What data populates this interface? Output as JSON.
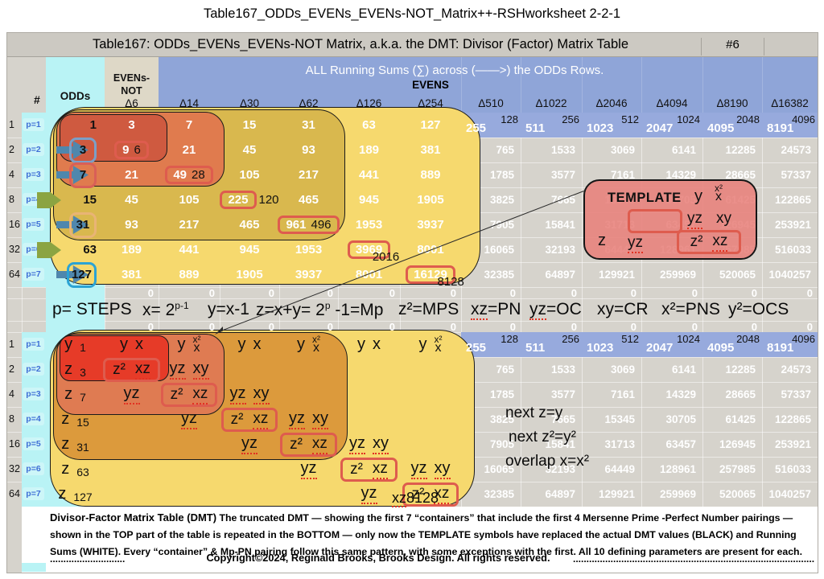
{
  "page_title": "Table167_ODDs_EVENs_EVENs-NOT_Matrix++-RSHworksheet 2-2-1",
  "table": {
    "header": "Table167: ODDs_EVENs_EVENs-NOT Matrix, a.k.a. the DMT: Divisor (Factor) Matrix Table",
    "sheet_number": "#6",
    "hash_label": "#",
    "odds_label": "ODDs",
    "evens_not_line1": "EVENs-",
    "evens_not_line2": "NOT",
    "band_title": "ALL Running Sums (∑) across (——>) the ODDs Rows.",
    "evens_label": "EVENS",
    "delta_labels": [
      "Δ6",
      "Δ14",
      "Δ30",
      "Δ62",
      "Δ126",
      "Δ254",
      "Δ510",
      "Δ1022",
      "Δ2046",
      "Δ4094",
      "Δ8190",
      "Δ16382"
    ],
    "zero_value": "0"
  },
  "rows": [
    {
      "num": "1",
      "p": "p=1"
    },
    {
      "num": "2",
      "p": "p=2"
    },
    {
      "num": "4",
      "p": "p=3"
    },
    {
      "num": "8",
      "p": "p=4"
    },
    {
      "num": "16",
      "p": "p=5"
    },
    {
      "num": "32",
      "p": "p=6"
    },
    {
      "num": "64",
      "p": "p=7"
    }
  ],
  "top_matrix": [
    [
      {
        "v": "1",
        "c": "b"
      },
      {
        "v": "3",
        "c": "w"
      },
      {
        "v": "7",
        "c": "w"
      },
      {
        "v": "15",
        "c": "w"
      },
      {
        "v": "31",
        "c": "w"
      },
      {
        "v": "63",
        "c": "w"
      },
      {
        "v": "127",
        "c": "w"
      },
      {
        "v": "255",
        "c": "w",
        "ev": "128"
      },
      {
        "v": "511",
        "c": "w",
        "ev": "256"
      },
      {
        "v": "1023",
        "c": "w",
        "ev": "512"
      },
      {
        "v": "2047",
        "c": "w",
        "ev": "1024"
      },
      {
        "v": "4095",
        "c": "w",
        "ev": "2048"
      },
      {
        "v": "8191",
        "c": "w",
        "ev": "4096"
      }
    ],
    [
      {
        "v": "3",
        "c": "b",
        "chip": "blue",
        "arrow": "blue"
      },
      {
        "v": "9",
        "c": "w",
        "box": true,
        "pn": "6",
        "pnpos": "in"
      },
      {
        "v": "21",
        "c": "w"
      },
      {
        "v": "45",
        "c": "w"
      },
      {
        "v": "93",
        "c": "w"
      },
      {
        "v": "189",
        "c": "w"
      },
      {
        "v": "381",
        "c": "w"
      },
      {
        "v": "765",
        "c": "w"
      },
      {
        "v": "1533",
        "c": "w"
      },
      {
        "v": "3069",
        "c": "w"
      },
      {
        "v": "6141",
        "c": "w"
      },
      {
        "v": "12285",
        "c": "w"
      },
      {
        "v": "24573",
        "c": "w"
      }
    ],
    [
      {
        "v": "7",
        "c": "b",
        "chip": "red",
        "arrow": "blue"
      },
      {
        "v": "21",
        "c": "w"
      },
      {
        "v": "49",
        "c": "w",
        "box": true,
        "pn": "28",
        "pnpos": "in"
      },
      {
        "v": "105",
        "c": "w"
      },
      {
        "v": "217",
        "c": "w"
      },
      {
        "v": "441",
        "c": "w"
      },
      {
        "v": "889",
        "c": "w"
      },
      {
        "v": "1785",
        "c": "w"
      },
      {
        "v": "3577",
        "c": "w"
      },
      {
        "v": "7161",
        "c": "w"
      },
      {
        "v": "14329",
        "c": "w"
      },
      {
        "v": "28665",
        "c": "w"
      },
      {
        "v": "57337",
        "c": "w"
      }
    ],
    [
      {
        "v": "15",
        "c": "b",
        "arrow": "green"
      },
      {
        "v": "45",
        "c": "w"
      },
      {
        "v": "105",
        "c": "w"
      },
      {
        "v": "225",
        "c": "w",
        "box": true,
        "pn": "120",
        "pnpos": "r"
      },
      {
        "v": "465",
        "c": "w"
      },
      {
        "v": "945",
        "c": "w"
      },
      {
        "v": "1905",
        "c": "w"
      },
      {
        "v": "3825",
        "c": "w"
      },
      {
        "v": "7665",
        "c": "w"
      },
      {
        "v": "15345",
        "c": "w"
      },
      {
        "v": "30705",
        "c": "w"
      },
      {
        "v": "61425",
        "c": "w"
      },
      {
        "v": "122865",
        "c": "w"
      }
    ],
    [
      {
        "v": "31",
        "c": "b",
        "chip": "tan",
        "arrow": "blue"
      },
      {
        "v": "93",
        "c": "w"
      },
      {
        "v": "217",
        "c": "w"
      },
      {
        "v": "465",
        "c": "w"
      },
      {
        "v": "961",
        "c": "w",
        "box": true,
        "pn": "496",
        "pnpos": "in"
      },
      {
        "v": "1953",
        "c": "w"
      },
      {
        "v": "3937",
        "c": "w"
      },
      {
        "v": "7905",
        "c": "w"
      },
      {
        "v": "15841",
        "c": "w"
      },
      {
        "v": "31713",
        "c": "w"
      },
      {
        "v": "63457",
        "c": "w"
      },
      {
        "v": "126945",
        "c": "w"
      },
      {
        "v": "253921",
        "c": "w"
      }
    ],
    [
      {
        "v": "63",
        "c": "b",
        "arrow": "green"
      },
      {
        "v": "189",
        "c": "w"
      },
      {
        "v": "441",
        "c": "w"
      },
      {
        "v": "945",
        "c": "w"
      },
      {
        "v": "1953",
        "c": "w"
      },
      {
        "v": "3969",
        "c": "w",
        "box": true,
        "pn": "2016",
        "pnpos": "br"
      },
      {
        "v": "8001",
        "c": "w"
      },
      {
        "v": "16065",
        "c": "w"
      },
      {
        "v": "32193",
        "c": "w"
      },
      {
        "v": "64449",
        "c": "w"
      },
      {
        "v": "128961",
        "c": "w"
      },
      {
        "v": "257985",
        "c": "w"
      },
      {
        "v": "516033",
        "c": "w"
      }
    ],
    [
      {
        "v": "127",
        "c": "b",
        "chip": "cyan",
        "arrow": "blue"
      },
      {
        "v": "381",
        "c": "w"
      },
      {
        "v": "889",
        "c": "w"
      },
      {
        "v": "1905",
        "c": "w"
      },
      {
        "v": "3937",
        "c": "w"
      },
      {
        "v": "8001",
        "c": "w"
      },
      {
        "v": "16129",
        "c": "w",
        "box": true,
        "pn": "8128",
        "pnpos": "br"
      },
      {
        "v": "32385",
        "c": "w"
      },
      {
        "v": "64897",
        "c": "w"
      },
      {
        "v": "129921",
        "c": "w"
      },
      {
        "v": "259969",
        "c": "w"
      },
      {
        "v": "520065",
        "c": "w"
      },
      {
        "v": "1040257",
        "c": "w"
      }
    ]
  ],
  "formula_tokens": [
    "p= STEPS",
    "x= 2^p-1^",
    "y=x-1",
    "z=x+y= 2^p^ -1=Mp",
    "z²=MPS",
    "xz=PN",
    "yz=OC",
    "xy=CR",
    "x²=PNS",
    "y²=OCS"
  ],
  "formula_squiggle_indices": [
    5,
    6
  ],
  "bottom_matrix": [
    [
      [
        {
          "t": "y"
        },
        {
          "t": "1",
          "small": true
        }
      ],
      [
        {
          "t": "y"
        },
        {
          "t": "x"
        }
      ],
      [
        {
          "t": "y"
        },
        {
          "stack": [
            "x²",
            "x"
          ]
        }
      ],
      [
        {
          "t": "y"
        },
        {
          "t": "x"
        }
      ],
      [
        {
          "t": "y"
        },
        {
          "stack": [
            "x²",
            "x"
          ]
        }
      ],
      [
        {
          "t": "y"
        },
        {
          "t": "x"
        }
      ],
      [
        {
          "t": "y"
        },
        {
          "stack": [
            "x²",
            "x"
          ]
        }
      ]
    ],
    [
      [
        {
          "t": "z"
        },
        {
          "t": "3",
          "small": true
        }
      ],
      [
        {
          "boxed": [
            "z²",
            "xz"
          ]
        }
      ],
      [
        {
          "t": "yz",
          "sq": true
        },
        {
          "t": "xy",
          "sq": true
        }
      ],
      null,
      null,
      null,
      null
    ],
    [
      [
        {
          "t": "z"
        },
        {
          "t": "7",
          "small": true
        }
      ],
      [
        {
          "t": "yz",
          "sq": true
        }
      ],
      [
        {
          "boxed": [
            "z²",
            "xz"
          ]
        }
      ],
      [
        {
          "t": "yz",
          "sq": true
        },
        {
          "t": "xy",
          "sq": true
        }
      ],
      null,
      null,
      null
    ],
    [
      [
        {
          "t": "z"
        },
        {
          "t": "15",
          "small": true
        }
      ],
      null,
      [
        {
          "t": "yz",
          "sq": true
        }
      ],
      [
        {
          "boxed": [
            "z²",
            "xz"
          ]
        }
      ],
      [
        {
          "t": "yz",
          "sq": true
        },
        {
          "t": "xy",
          "sq": true
        }
      ],
      null,
      null
    ],
    [
      [
        {
          "t": "z"
        },
        {
          "t": "31",
          "small": true
        }
      ],
      null,
      null,
      [
        {
          "t": "yz",
          "sq": true
        }
      ],
      [
        {
          "boxed": [
            "z²",
            "xz"
          ]
        }
      ],
      [
        {
          "t": "yz",
          "sq": true
        },
        {
          "t": "xy",
          "sq": true
        }
      ],
      null
    ],
    [
      [
        {
          "t": "z"
        },
        {
          "t": "63",
          "small": true
        }
      ],
      null,
      null,
      null,
      [
        {
          "t": "yz",
          "sq": true
        }
      ],
      [
        {
          "boxed": [
            "z²",
            "xz"
          ]
        }
      ],
      [
        {
          "t": "yz",
          "sq": true
        },
        {
          "t": "xy",
          "sq": true
        }
      ]
    ],
    [
      [
        {
          "t": "z"
        },
        {
          "t": "127",
          "small": true
        }
      ],
      null,
      null,
      null,
      null,
      [
        {
          "t": "yz",
          "sq": true
        }
      ],
      [
        {
          "boxed": [
            "z²",
            "xz"
          ]
        }
      ]
    ]
  ],
  "template": {
    "title": "TEMPLATE",
    "y": "y",
    "x_sq": "x²",
    "x": "x",
    "yz": "yz",
    "xy": "xy",
    "z": "z",
    "yz2": "yz",
    "z_sq": "z²",
    "xz": "xz"
  },
  "annotations": {
    "next_z": "next z=y",
    "next_z2": "next z²=y²",
    "overlap": "overlap x=x²",
    "pn_label": "xz",
    "pn_value": "8128"
  },
  "footer": {
    "lead": "Divisor-Factor Matrix Table (DMT)",
    "body": "  The truncated DMT — showing the first 7 “containers” that include the first 4 Mersenne Prime -Perfect Number pairings — shown in the TOP part of the table is repeated in the BOTTOM — only now the TEMPLATE symbols have replaced the actual DMT values (BLACK) and Running Sums (WHITE). Every “container” & Mp-PN pairing follow this same pattern, with some exceptions with the first. All 10 defining parameters are present for each.",
    "copyright": "Copyright©2024, Reginald Brooks, Brooks Design. All rights reserved.",
    "dots_left": "............................",
    "dots_right": "........................................................................................................"
  },
  "colors": {
    "table_bg": "#d6d3cc",
    "header_bg": "#ccc9c2",
    "band_blue": "#8fa5d8",
    "row1_band": "#97aadd",
    "cyan": "#b9f3f5",
    "p_chip": "#cdf6f8",
    "beige": "#ded8c7",
    "top_containers": [
      "#f6d96e",
      "#d9b84e",
      "#e07b4e",
      "#cf5a40"
    ],
    "bottom_containers": [
      "#f6d96e",
      "#dc9a3c",
      "#df7b52",
      "#e63b28"
    ],
    "template_fill": "#e8827a",
    "red_box": "#de5c4e",
    "chips": {
      "blue": "#7b9fc7",
      "red": "#d95f57",
      "tan": "#e9b475",
      "cyan": "#2ba3d4"
    },
    "arrow_blue": "#4f87ad",
    "arrow_green": "#8ba442",
    "white_text": "#ffffff",
    "black_text": "#111111",
    "p_label_text": "#3f6fd6",
    "squiggle": "#e23222"
  }
}
